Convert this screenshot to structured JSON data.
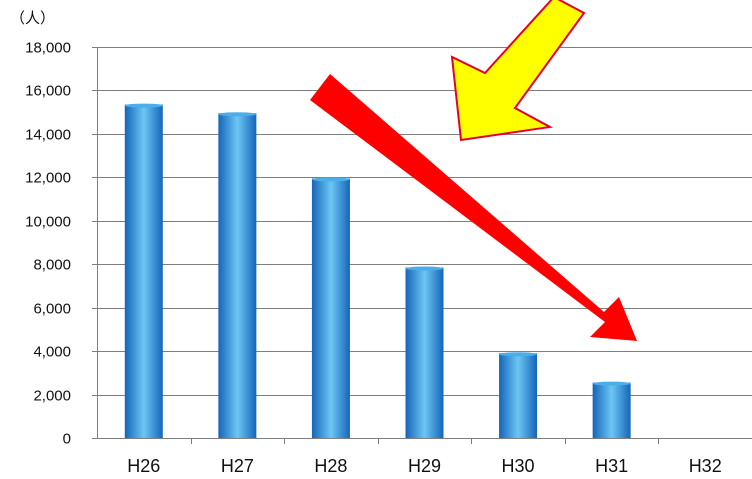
{
  "chart_data": {
    "type": "bar",
    "unit_label": "（人）",
    "categories": [
      "H26",
      "H27",
      "H28",
      "H29",
      "H30",
      "H31",
      "H32"
    ],
    "values": [
      15350,
      14950,
      11950,
      7850,
      3900,
      2550,
      null
    ],
    "ylim": [
      0,
      18000
    ],
    "y_ticks": [
      "0",
      "2,000",
      "4,000",
      "6,000",
      "8,000",
      "10,000",
      "12,000",
      "14,000",
      "16,000",
      "18,000"
    ],
    "grid": true,
    "legend": "none",
    "colors": {
      "bar_dark": "#1565b8",
      "bar_mid": "#2a93dc",
      "bar_light": "#6cc6f4",
      "grid": "#7f7f7f",
      "arrow_red": "#ff0000",
      "arrow_yellow": "#ffff00",
      "arrow_yellow_outline": "#e4002b"
    },
    "annotations": [
      {
        "type": "arrow",
        "color": "red",
        "direction": "down-right"
      },
      {
        "type": "arrow",
        "color": "yellow",
        "direction": "down-left"
      }
    ]
  }
}
